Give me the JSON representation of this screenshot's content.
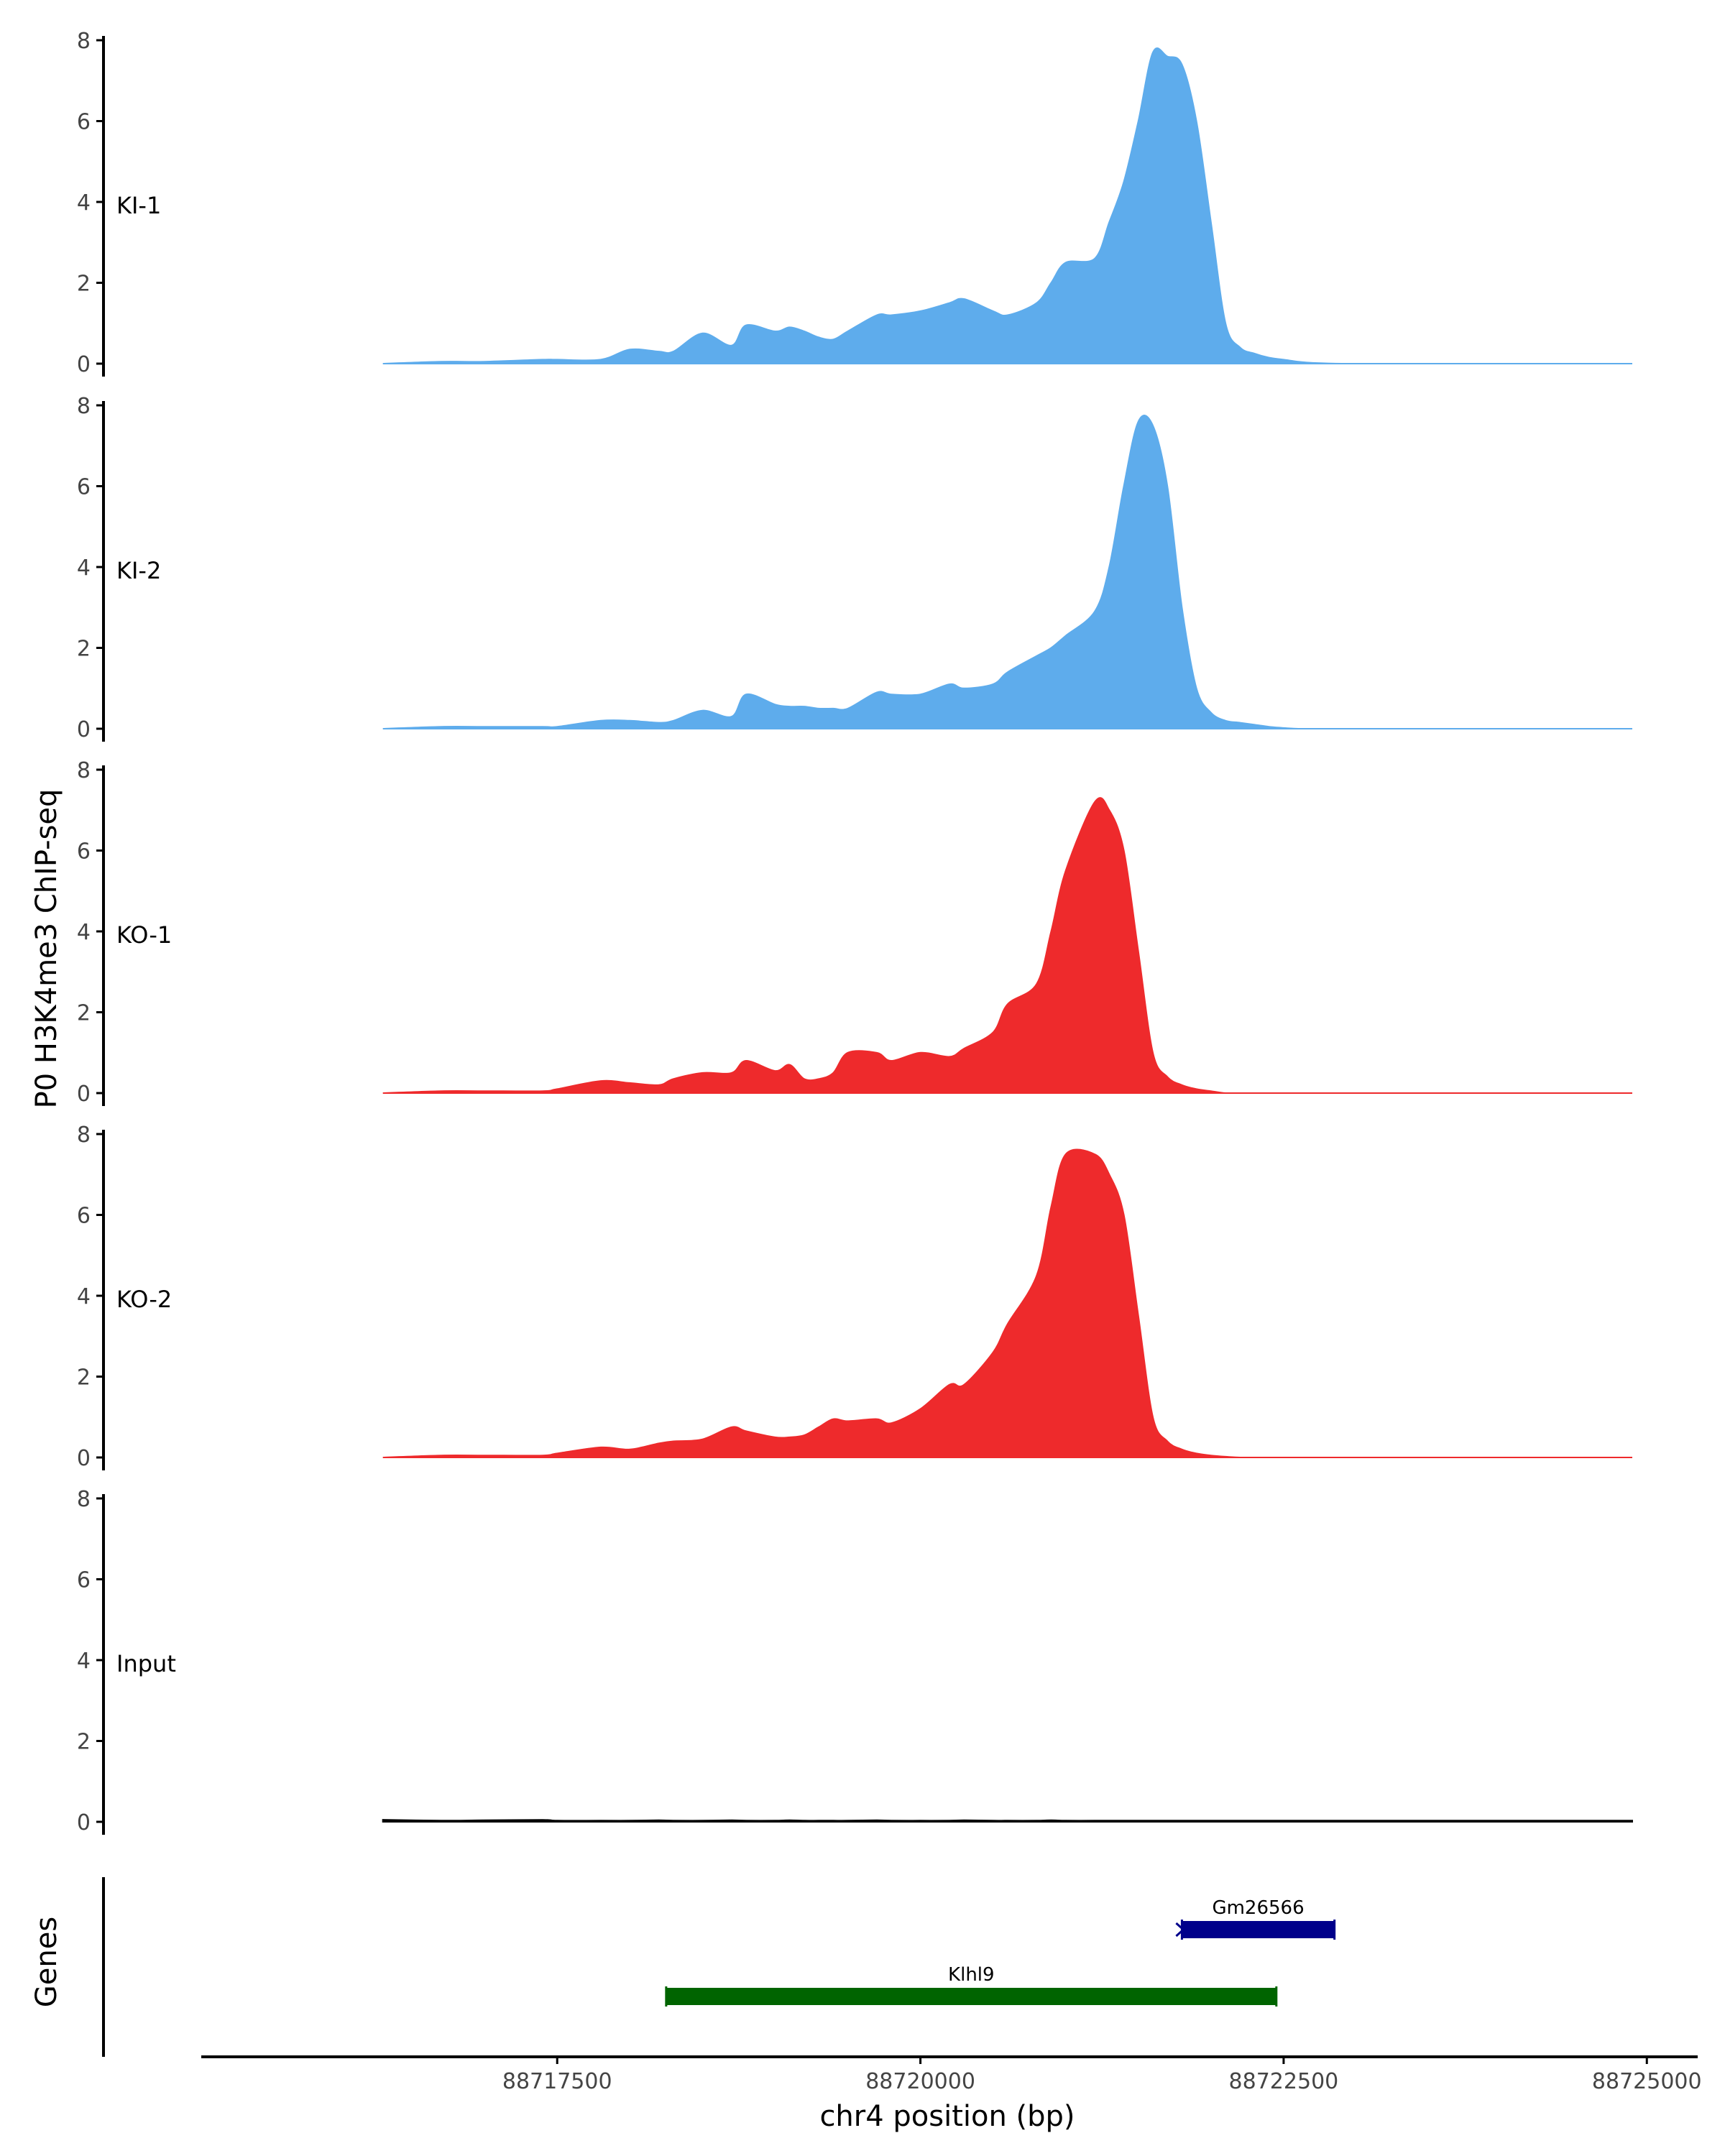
{
  "chart_data": {
    "type": "area",
    "title": "",
    "ylabel": "P0 H3K4me3 ChIP-seq",
    "xlabel": "chr4 position (bp)",
    "xlim": [
      88715050,
      88725350
    ],
    "ylim": [
      0,
      8
    ],
    "yticks": [
      0,
      2,
      4,
      6,
      8
    ],
    "xticks": [
      88717500,
      88720000,
      88722500,
      88725000
    ],
    "xtick_labels": [
      "88717500",
      "88720000",
      "88722500",
      "88725000"
    ],
    "track_x": [
      88716300,
      88716700,
      88717000,
      88717400,
      88717500,
      88717800,
      88718000,
      88718200,
      88718300,
      88718500,
      88718700,
      88718800,
      88719000,
      88719100,
      88719200,
      88719300,
      88719400,
      88719500,
      88719700,
      88719800,
      88720000,
      88720200,
      88720300,
      88720500,
      88720600,
      88720800,
      88720900,
      88721000,
      88721200,
      88721300,
      88721400,
      88721500,
      88721600,
      88721700,
      88721800,
      88721900,
      88722000,
      88722100,
      88722200,
      88722300,
      88722400,
      88722500,
      88722600,
      88722700,
      88722900,
      88723200,
      88723500,
      88724000,
      88724500,
      88724900
    ],
    "series": [
      {
        "name": "KI-1",
        "color": "#5EACEC",
        "values": [
          0.0,
          0.05,
          0.05,
          0.1,
          0.1,
          0.1,
          0.35,
          0.3,
          0.3,
          0.75,
          0.45,
          0.95,
          0.8,
          0.9,
          0.8,
          0.65,
          0.6,
          0.8,
          1.2,
          1.2,
          1.3,
          1.5,
          1.6,
          1.3,
          1.2,
          1.5,
          2.0,
          2.5,
          2.6,
          3.5,
          4.5,
          6.0,
          7.7,
          7.6,
          7.4,
          6.0,
          3.5,
          1.0,
          0.4,
          0.25,
          0.15,
          0.1,
          0.05,
          0.02,
          0.0,
          0.0,
          0.0,
          0.0,
          0.0,
          0.0
        ]
      },
      {
        "name": "KI-2",
        "color": "#5EACEC",
        "values": [
          0.0,
          0.05,
          0.05,
          0.05,
          0.05,
          0.2,
          0.2,
          0.15,
          0.2,
          0.45,
          0.3,
          0.85,
          0.6,
          0.55,
          0.55,
          0.5,
          0.5,
          0.5,
          0.9,
          0.85,
          0.85,
          1.1,
          1.0,
          1.1,
          1.4,
          1.8,
          2.0,
          2.3,
          2.9,
          4.0,
          6.0,
          7.6,
          7.5,
          6.0,
          3.0,
          1.0,
          0.4,
          0.2,
          0.15,
          0.1,
          0.05,
          0.02,
          0.0,
          0.0,
          0.0,
          0.0,
          0.0,
          0.0,
          0.0,
          0.0
        ]
      },
      {
        "name": "KO-1",
        "color": "#EE2A2C",
        "values": [
          0.0,
          0.05,
          0.05,
          0.05,
          0.1,
          0.3,
          0.25,
          0.2,
          0.35,
          0.5,
          0.5,
          0.8,
          0.55,
          0.7,
          0.35,
          0.35,
          0.5,
          1.0,
          1.0,
          0.8,
          1.0,
          0.9,
          1.1,
          1.5,
          2.2,
          2.7,
          4.0,
          5.5,
          7.2,
          7.0,
          6.0,
          3.5,
          1.0,
          0.4,
          0.2,
          0.1,
          0.05,
          0.0,
          0.0,
          0.0,
          0.0,
          0.0,
          0.0,
          0.0,
          0.0,
          0.0,
          0.0,
          0.0,
          0.0,
          0.0
        ]
      },
      {
        "name": "KO-2",
        "color": "#EE2A2C",
        "values": [
          0.0,
          0.05,
          0.05,
          0.05,
          0.1,
          0.25,
          0.2,
          0.35,
          0.4,
          0.45,
          0.75,
          0.65,
          0.5,
          0.5,
          0.55,
          0.75,
          0.95,
          0.9,
          0.95,
          0.85,
          1.2,
          1.8,
          1.8,
          2.6,
          3.3,
          4.5,
          6.2,
          7.5,
          7.5,
          7.0,
          6.0,
          3.5,
          1.0,
          0.4,
          0.2,
          0.1,
          0.05,
          0.02,
          0.0,
          0.0,
          0.0,
          0.0,
          0.0,
          0.0,
          0.0,
          0.0,
          0.0,
          0.0,
          0.0,
          0.0
        ]
      },
      {
        "name": "Input",
        "color": "#000000",
        "values": [
          0.05,
          0.03,
          0.04,
          0.05,
          0.03,
          0.03,
          0.03,
          0.04,
          0.03,
          0.03,
          0.04,
          0.03,
          0.03,
          0.04,
          0.03,
          0.03,
          0.03,
          0.03,
          0.04,
          0.03,
          0.03,
          0.03,
          0.04,
          0.03,
          0.03,
          0.03,
          0.04,
          0.03,
          0.03,
          0.03,
          0.03,
          0.03,
          0.03,
          0.03,
          0.03,
          0.03,
          0.03,
          0.03,
          0.03,
          0.03,
          0.03,
          0.03,
          0.03,
          0.03,
          0.03,
          0.03,
          0.03,
          0.03,
          0.03,
          0.03
        ]
      }
    ],
    "genes_label": "Genes",
    "genes": [
      {
        "name": "Gm26566",
        "start": 88721800,
        "end": 88722850,
        "color": "#00008B",
        "strand": "-"
      },
      {
        "name": "Klhl9",
        "start": 88718250,
        "end": 88722450,
        "color": "#006400",
        "strand": "+"
      }
    ]
  }
}
